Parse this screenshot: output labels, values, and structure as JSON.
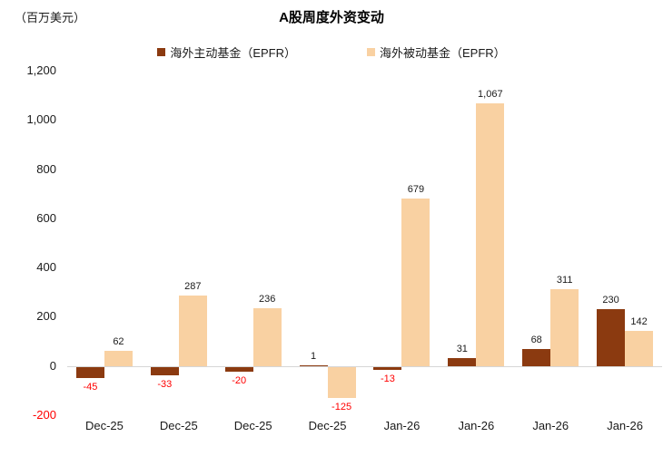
{
  "header": {
    "unit_label": "（百万美元）",
    "title": "A股周度外资变动"
  },
  "colors": {
    "active_series": "#8B3A10",
    "passive_series": "#F9D1A2",
    "negative_text": "#FF0000",
    "axis_line": "#D6D6D6",
    "text": "#1A1A1A"
  },
  "chart_data": {
    "type": "bar",
    "title": "A股周度外资变动",
    "unit": "（百万美元）",
    "categories": [
      "Dec-25",
      "Dec-25",
      "Dec-25",
      "Dec-25",
      "Jan-26",
      "Jan-26",
      "Jan-26",
      "Jan-26"
    ],
    "series": [
      {
        "name": "海外主动基金（EPFR）",
        "color": "#8B3A10",
        "values": [
          -45,
          -33,
          -20,
          1,
          -13,
          31,
          68,
          230
        ]
      },
      {
        "name": "海外被动基金（EPFR）",
        "color": "#F9D1A2",
        "values": [
          62,
          287,
          236,
          -125,
          679,
          1067,
          311,
          142
        ]
      }
    ],
    "ylim": [
      -200,
      1200
    ],
    "yticks": [
      1200,
      1000,
      800,
      600,
      400,
      200,
      0,
      -200
    ],
    "ytick_labels": [
      "1,200",
      "1,000",
      "800",
      "600",
      "400",
      "200",
      "0",
      "-200"
    ],
    "grid": false,
    "legend_position": "top",
    "value_labels": true,
    "negative_labels_red": true
  }
}
